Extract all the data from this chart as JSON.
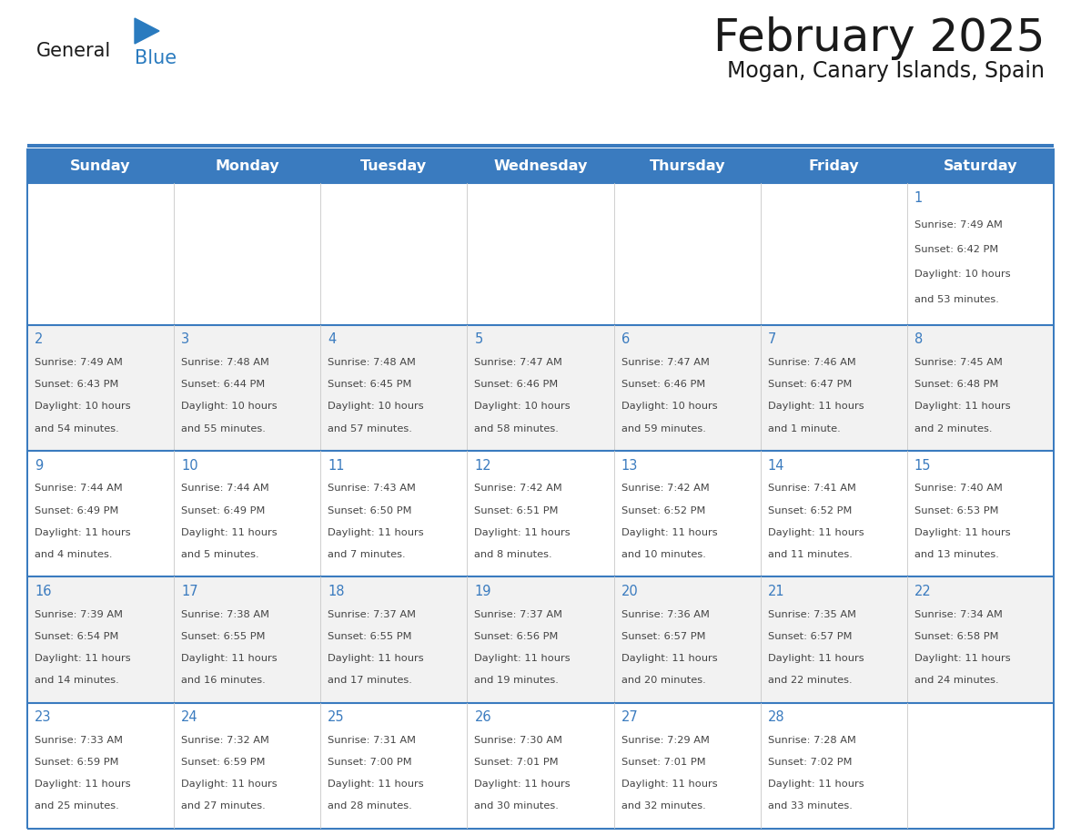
{
  "title": "February 2025",
  "subtitle": "Mogan, Canary Islands, Spain",
  "days_of_week": [
    "Sunday",
    "Monday",
    "Tuesday",
    "Wednesday",
    "Thursday",
    "Friday",
    "Saturday"
  ],
  "header_bg": "#3a7bbf",
  "header_text": "#ffffff",
  "cell_bg_even": "#f2f2f2",
  "cell_bg_odd": "#ffffff",
  "border_color": "#3a7bbf",
  "day_num_color": "#3a7bbf",
  "text_color": "#444444",
  "title_color": "#1a1a1a",
  "logo_general_color": "#1a1a1a",
  "logo_blue_color": "#2a7bbf",
  "calendar_data": [
    [
      null,
      null,
      null,
      null,
      null,
      null,
      {
        "day": 1,
        "sunrise": "7:49 AM",
        "sunset": "6:42 PM",
        "daylight": "10 hours",
        "daylight2": "and 53 minutes."
      }
    ],
    [
      {
        "day": 2,
        "sunrise": "7:49 AM",
        "sunset": "6:43 PM",
        "daylight": "10 hours",
        "daylight2": "and 54 minutes."
      },
      {
        "day": 3,
        "sunrise": "7:48 AM",
        "sunset": "6:44 PM",
        "daylight": "10 hours",
        "daylight2": "and 55 minutes."
      },
      {
        "day": 4,
        "sunrise": "7:48 AM",
        "sunset": "6:45 PM",
        "daylight": "10 hours",
        "daylight2": "and 57 minutes."
      },
      {
        "day": 5,
        "sunrise": "7:47 AM",
        "sunset": "6:46 PM",
        "daylight": "10 hours",
        "daylight2": "and 58 minutes."
      },
      {
        "day": 6,
        "sunrise": "7:47 AM",
        "sunset": "6:46 PM",
        "daylight": "10 hours",
        "daylight2": "and 59 minutes."
      },
      {
        "day": 7,
        "sunrise": "7:46 AM",
        "sunset": "6:47 PM",
        "daylight": "11 hours",
        "daylight2": "and 1 minute."
      },
      {
        "day": 8,
        "sunrise": "7:45 AM",
        "sunset": "6:48 PM",
        "daylight": "11 hours",
        "daylight2": "and 2 minutes."
      }
    ],
    [
      {
        "day": 9,
        "sunrise": "7:44 AM",
        "sunset": "6:49 PM",
        "daylight": "11 hours",
        "daylight2": "and 4 minutes."
      },
      {
        "day": 10,
        "sunrise": "7:44 AM",
        "sunset": "6:49 PM",
        "daylight": "11 hours",
        "daylight2": "and 5 minutes."
      },
      {
        "day": 11,
        "sunrise": "7:43 AM",
        "sunset": "6:50 PM",
        "daylight": "11 hours",
        "daylight2": "and 7 minutes."
      },
      {
        "day": 12,
        "sunrise": "7:42 AM",
        "sunset": "6:51 PM",
        "daylight": "11 hours",
        "daylight2": "and 8 minutes."
      },
      {
        "day": 13,
        "sunrise": "7:42 AM",
        "sunset": "6:52 PM",
        "daylight": "11 hours",
        "daylight2": "and 10 minutes."
      },
      {
        "day": 14,
        "sunrise": "7:41 AM",
        "sunset": "6:52 PM",
        "daylight": "11 hours",
        "daylight2": "and 11 minutes."
      },
      {
        "day": 15,
        "sunrise": "7:40 AM",
        "sunset": "6:53 PM",
        "daylight": "11 hours",
        "daylight2": "and 13 minutes."
      }
    ],
    [
      {
        "day": 16,
        "sunrise": "7:39 AM",
        "sunset": "6:54 PM",
        "daylight": "11 hours",
        "daylight2": "and 14 minutes."
      },
      {
        "day": 17,
        "sunrise": "7:38 AM",
        "sunset": "6:55 PM",
        "daylight": "11 hours",
        "daylight2": "and 16 minutes."
      },
      {
        "day": 18,
        "sunrise": "7:37 AM",
        "sunset": "6:55 PM",
        "daylight": "11 hours",
        "daylight2": "and 17 minutes."
      },
      {
        "day": 19,
        "sunrise": "7:37 AM",
        "sunset": "6:56 PM",
        "daylight": "11 hours",
        "daylight2": "and 19 minutes."
      },
      {
        "day": 20,
        "sunrise": "7:36 AM",
        "sunset": "6:57 PM",
        "daylight": "11 hours",
        "daylight2": "and 20 minutes."
      },
      {
        "day": 21,
        "sunrise": "7:35 AM",
        "sunset": "6:57 PM",
        "daylight": "11 hours",
        "daylight2": "and 22 minutes."
      },
      {
        "day": 22,
        "sunrise": "7:34 AM",
        "sunset": "6:58 PM",
        "daylight": "11 hours",
        "daylight2": "and 24 minutes."
      }
    ],
    [
      {
        "day": 23,
        "sunrise": "7:33 AM",
        "sunset": "6:59 PM",
        "daylight": "11 hours",
        "daylight2": "and 25 minutes."
      },
      {
        "day": 24,
        "sunrise": "7:32 AM",
        "sunset": "6:59 PM",
        "daylight": "11 hours",
        "daylight2": "and 27 minutes."
      },
      {
        "day": 25,
        "sunrise": "7:31 AM",
        "sunset": "7:00 PM",
        "daylight": "11 hours",
        "daylight2": "and 28 minutes."
      },
      {
        "day": 26,
        "sunrise": "7:30 AM",
        "sunset": "7:01 PM",
        "daylight": "11 hours",
        "daylight2": "and 30 minutes."
      },
      {
        "day": 27,
        "sunrise": "7:29 AM",
        "sunset": "7:01 PM",
        "daylight": "11 hours",
        "daylight2": "and 32 minutes."
      },
      {
        "day": 28,
        "sunrise": "7:28 AM",
        "sunset": "7:02 PM",
        "daylight": "11 hours",
        "daylight2": "and 33 minutes."
      },
      null
    ]
  ],
  "fig_width": 11.88,
  "fig_height": 9.18
}
